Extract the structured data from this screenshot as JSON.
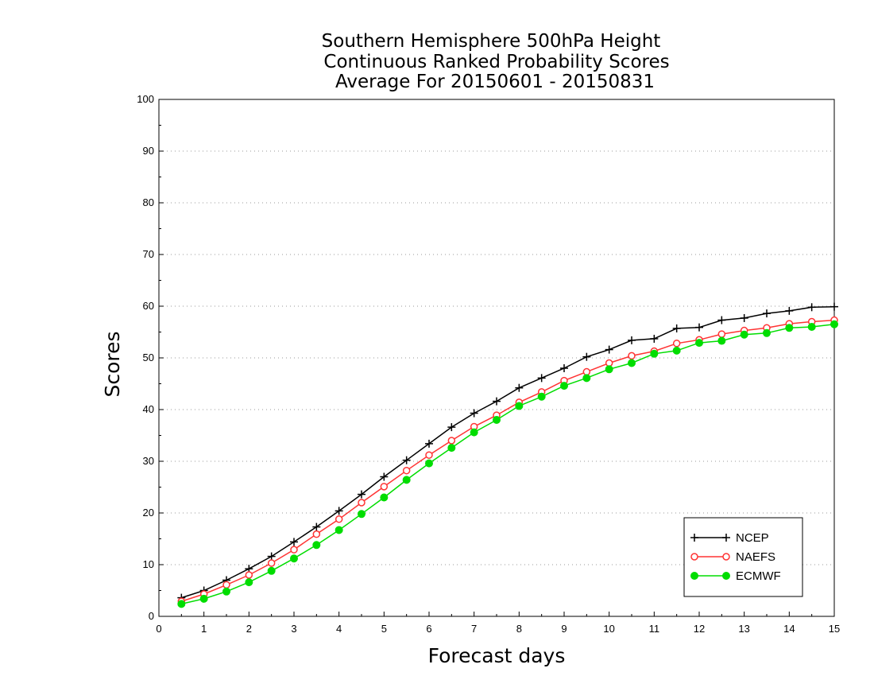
{
  "chart_data": {
    "type": "line",
    "title_lines": [
      "Southern Hemisphere 500hPa Height",
      "Continuous Ranked Probability Scores",
      "Average For 20150601 - 20150831"
    ],
    "xlabel": "Forecast days",
    "ylabel": "Scores",
    "xlim": [
      0,
      15
    ],
    "ylim": [
      0,
      100
    ],
    "x_ticks": [
      0,
      1,
      2,
      3,
      4,
      5,
      6,
      7,
      8,
      9,
      10,
      11,
      12,
      13,
      14,
      15
    ],
    "y_ticks": [
      0,
      10,
      20,
      30,
      40,
      50,
      60,
      70,
      80,
      90,
      100
    ],
    "grid": "horizontal dotted",
    "legend_position": "bottom-right",
    "x": [
      0.5,
      1,
      1.5,
      2,
      2.5,
      3,
      3.5,
      4,
      4.5,
      5,
      5.5,
      6,
      6.5,
      7,
      7.5,
      8,
      8.5,
      9,
      9.5,
      10,
      10.5,
      11,
      11.5,
      12,
      12.5,
      13,
      13.5,
      14,
      14.5,
      15
    ],
    "series": [
      {
        "name": "NCEP",
        "color": "#000000",
        "marker": "plus",
        "values": [
          3.6,
          5.0,
          7.0,
          9.2,
          11.6,
          14.4,
          17.3,
          20.4,
          23.6,
          27.0,
          30.2,
          33.4,
          36.6,
          39.3,
          41.6,
          44.2,
          46.1,
          48.0,
          50.2,
          51.6,
          53.4,
          53.7,
          55.7,
          55.9,
          57.3,
          57.7,
          58.6,
          59.1,
          59.8,
          59.9
        ]
      },
      {
        "name": "NAEFS",
        "color": "#ff3333",
        "marker": "open-circle",
        "values": [
          2.9,
          4.3,
          6.1,
          8.0,
          10.3,
          12.9,
          15.9,
          18.8,
          22.0,
          25.1,
          28.2,
          31.2,
          34.0,
          36.7,
          38.9,
          41.4,
          43.4,
          45.6,
          47.3,
          49.0,
          50.4,
          51.3,
          52.8,
          53.5,
          54.6,
          55.3,
          55.8,
          56.6,
          57.0,
          57.3
        ]
      },
      {
        "name": "ECMWF",
        "color": "#00dd00",
        "marker": "filled-circle",
        "values": [
          2.4,
          3.4,
          4.8,
          6.6,
          8.8,
          11.2,
          13.8,
          16.7,
          19.8,
          23.0,
          26.4,
          29.6,
          32.6,
          35.6,
          38.0,
          40.7,
          42.5,
          44.6,
          46.1,
          47.8,
          49.0,
          50.8,
          51.4,
          52.9,
          53.3,
          54.5,
          54.8,
          55.8,
          56.0,
          56.5
        ]
      }
    ]
  }
}
